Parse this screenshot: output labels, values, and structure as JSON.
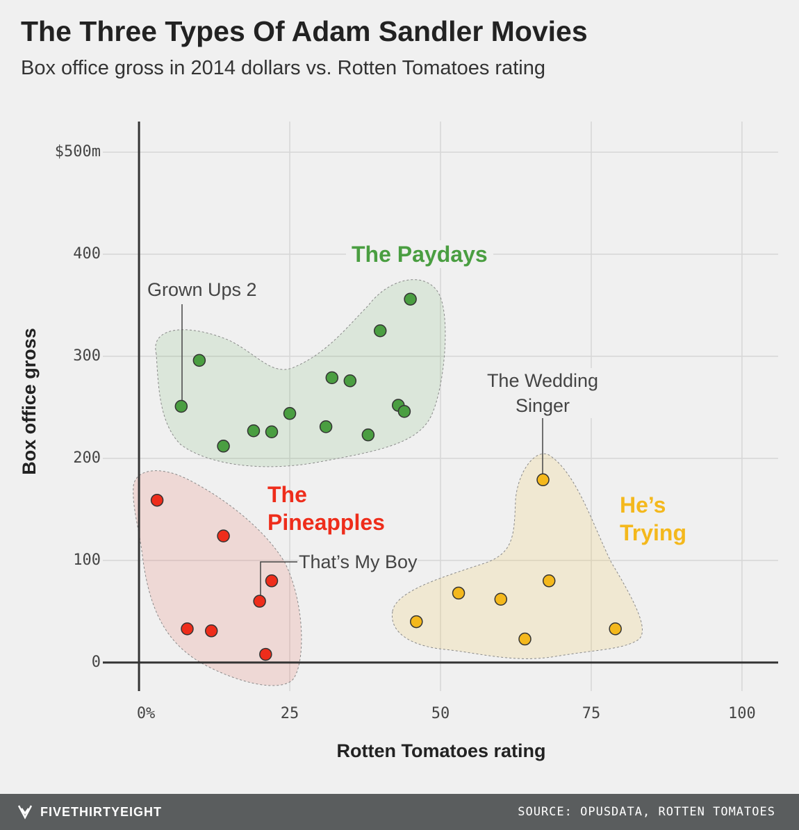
{
  "chart_data": {
    "type": "scatter",
    "title": "The Three Types Of Adam Sandler Movies",
    "subtitle": "Box office gross in 2014 dollars vs. Rotten Tomatoes rating",
    "x_label": "Rotten Tomatoes rating",
    "y_label": "Box office gross",
    "xlim": [
      -6,
      106
    ],
    "ylim": [
      -28,
      530
    ],
    "xticks": [
      {
        "value": 0,
        "label": "0%"
      },
      25,
      50,
      75,
      100
    ],
    "yticks": [
      0,
      100,
      200,
      300,
      400,
      {
        "value": 500,
        "label": "$500m"
      }
    ],
    "grid": true,
    "series": [
      {
        "name": "The Paydays",
        "color": "#4a9e41",
        "x": [
          7,
          10,
          14,
          19,
          22,
          25,
          31,
          32,
          35,
          38,
          40,
          43,
          44,
          45
        ],
        "values": [
          251,
          296,
          212,
          227,
          226,
          244,
          231,
          279,
          276,
          223,
          325,
          252,
          246,
          356
        ]
      },
      {
        "name": "The Pineapples",
        "color": "#ee2d1b",
        "x": [
          3,
          14,
          8,
          12,
          20,
          22,
          21
        ],
        "values": [
          159,
          124,
          33,
          31,
          60,
          80,
          8
        ]
      },
      {
        "name": "He’s Trying",
        "color": "#f4b81c",
        "x": [
          67,
          46,
          53,
          60,
          64,
          68,
          79
        ],
        "values": [
          179,
          40,
          68,
          62,
          23,
          80,
          33
        ]
      }
    ],
    "annotations": [
      "Grown Ups 2",
      "The Wedding Singer",
      "That’s My Boy"
    ]
  },
  "footer": {
    "brand": "FIVETHIRTYEIGHT",
    "source": "SOURCE: OPUSDATA, ROTTEN TOMATOES"
  }
}
